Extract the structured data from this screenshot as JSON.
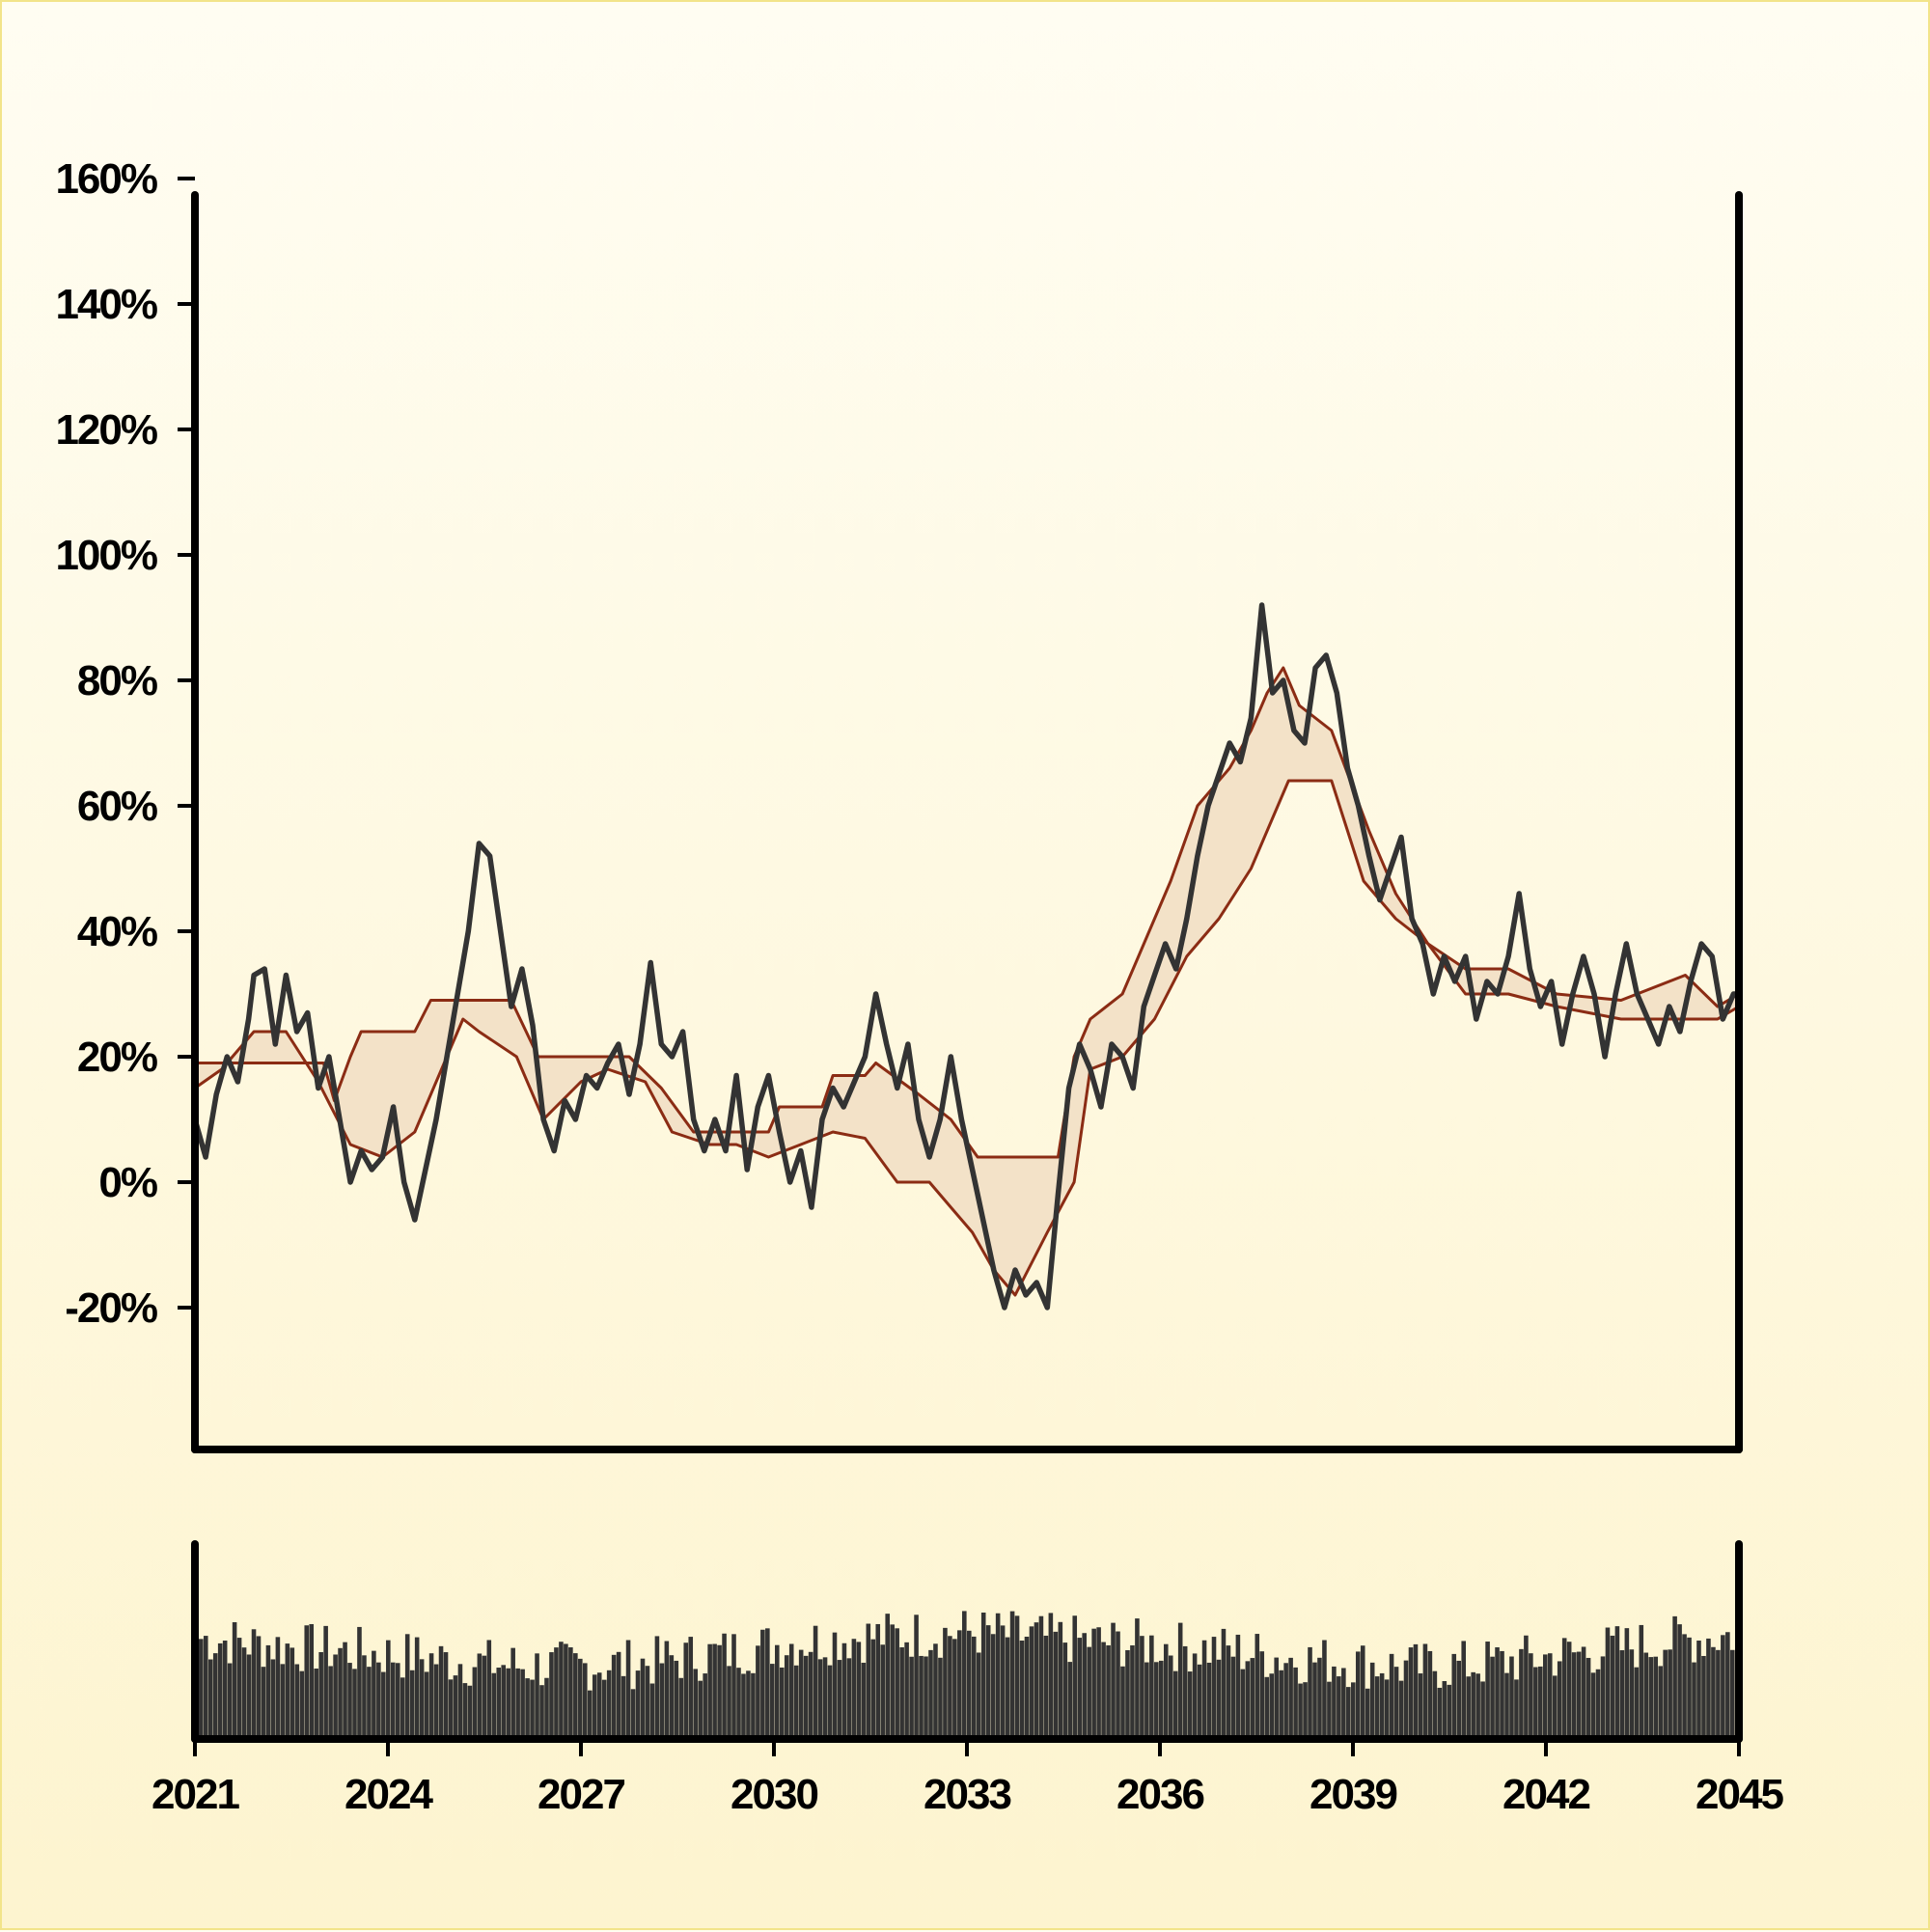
{
  "chart_data": {
    "type": "line",
    "x_axis": {
      "type": "date",
      "range": [
        "2021-01",
        "2045-01"
      ],
      "tick_labels": [
        "2021",
        "2024",
        "2027",
        "2030",
        "2033",
        "2036",
        "2039",
        "2042",
        "2045"
      ]
    },
    "y_axis": {
      "range": [
        -20,
        175
      ],
      "unit": "%",
      "tick_values": [
        -20,
        0,
        20,
        40,
        60,
        80,
        100,
        120,
        140,
        160
      ],
      "tick_labels": [
        "-20%",
        "0%",
        "20%",
        "40%",
        "60%",
        "80%",
        "100%",
        "120%",
        "140%",
        "160%"
      ]
    },
    "series": [
      {
        "role": "price",
        "style": "line",
        "color": "#333333",
        "points": [
          [
            "2021-01",
            10
          ],
          [
            "2021-03",
            4
          ],
          [
            "2021-05",
            14
          ],
          [
            "2021-07",
            20
          ],
          [
            "2021-09",
            16
          ],
          [
            "2021-11",
            26
          ],
          [
            "2021-12",
            33
          ],
          [
            "2022-02",
            34
          ],
          [
            "2022-04",
            22
          ],
          [
            "2022-06",
            33
          ],
          [
            "2022-08",
            24
          ],
          [
            "2022-10",
            27
          ],
          [
            "2022-12",
            15
          ],
          [
            "2023-02",
            20
          ],
          [
            "2023-04",
            10
          ],
          [
            "2023-06",
            0
          ],
          [
            "2023-08",
            5
          ],
          [
            "2023-10",
            2
          ],
          [
            "2023-12",
            4
          ],
          [
            "2024-02",
            12
          ],
          [
            "2024-04",
            0
          ],
          [
            "2024-06",
            -6
          ],
          [
            "2024-08",
            2
          ],
          [
            "2024-10",
            10
          ],
          [
            "2024-12",
            20
          ],
          [
            "2025-02",
            30
          ],
          [
            "2025-04",
            40
          ],
          [
            "2025-06",
            54
          ],
          [
            "2025-08",
            52
          ],
          [
            "2025-10",
            40
          ],
          [
            "2025-12",
            28
          ],
          [
            "2026-02",
            34
          ],
          [
            "2026-04",
            25
          ],
          [
            "2026-06",
            10
          ],
          [
            "2026-08",
            5
          ],
          [
            "2026-10",
            13
          ],
          [
            "2026-12",
            10
          ],
          [
            "2027-02",
            17
          ],
          [
            "2027-04",
            15
          ],
          [
            "2027-06",
            19
          ],
          [
            "2027-08",
            22
          ],
          [
            "2027-10",
            14
          ],
          [
            "2027-12",
            22
          ],
          [
            "2028-02",
            35
          ],
          [
            "2028-04",
            22
          ],
          [
            "2028-06",
            20
          ],
          [
            "2028-08",
            24
          ],
          [
            "2028-10",
            10
          ],
          [
            "2028-12",
            5
          ],
          [
            "2029-02",
            10
          ],
          [
            "2029-04",
            5
          ],
          [
            "2029-06",
            17
          ],
          [
            "2029-08",
            2
          ],
          [
            "2029-10",
            12
          ],
          [
            "2029-12",
            17
          ],
          [
            "2030-02",
            8
          ],
          [
            "2030-04",
            0
          ],
          [
            "2030-06",
            5
          ],
          [
            "2030-08",
            -4
          ],
          [
            "2030-10",
            10
          ],
          [
            "2030-12",
            15
          ],
          [
            "2031-02",
            12
          ],
          [
            "2031-04",
            16
          ],
          [
            "2031-06",
            20
          ],
          [
            "2031-08",
            30
          ],
          [
            "2031-10",
            22
          ],
          [
            "2031-12",
            15
          ],
          [
            "2032-02",
            22
          ],
          [
            "2032-04",
            10
          ],
          [
            "2032-06",
            4
          ],
          [
            "2032-08",
            10
          ],
          [
            "2032-10",
            20
          ],
          [
            "2032-12",
            10
          ],
          [
            "2033-02",
            2
          ],
          [
            "2033-04",
            -6
          ],
          [
            "2033-06",
            -14
          ],
          [
            "2033-08",
            -20
          ],
          [
            "2033-10",
            -14
          ],
          [
            "2033-12",
            -18
          ],
          [
            "2034-02",
            -16
          ],
          [
            "2034-04",
            -20
          ],
          [
            "2034-06",
            -2
          ],
          [
            "2034-08",
            15
          ],
          [
            "2034-10",
            22
          ],
          [
            "2034-12",
            18
          ],
          [
            "2035-02",
            12
          ],
          [
            "2035-04",
            22
          ],
          [
            "2035-06",
            20
          ],
          [
            "2035-08",
            15
          ],
          [
            "2035-10",
            28
          ],
          [
            "2035-12",
            33
          ],
          [
            "2036-02",
            38
          ],
          [
            "2036-04",
            34
          ],
          [
            "2036-06",
            42
          ],
          [
            "2036-08",
            52
          ],
          [
            "2036-10",
            60
          ],
          [
            "2036-12",
            65
          ],
          [
            "2037-02",
            70
          ],
          [
            "2037-04",
            67
          ],
          [
            "2037-06",
            74
          ],
          [
            "2037-08",
            92
          ],
          [
            "2037-10",
            78
          ],
          [
            "2037-12",
            80
          ],
          [
            "2038-02",
            72
          ],
          [
            "2038-04",
            70
          ],
          [
            "2038-06",
            82
          ],
          [
            "2038-08",
            84
          ],
          [
            "2038-10",
            78
          ],
          [
            "2038-12",
            66
          ],
          [
            "2039-02",
            60
          ],
          [
            "2039-04",
            52
          ],
          [
            "2039-06",
            45
          ],
          [
            "2039-08",
            50
          ],
          [
            "2039-10",
            55
          ],
          [
            "2039-12",
            42
          ],
          [
            "2040-02",
            38
          ],
          [
            "2040-04",
            30
          ],
          [
            "2040-06",
            36
          ],
          [
            "2040-08",
            32
          ],
          [
            "2040-10",
            36
          ],
          [
            "2040-12",
            26
          ],
          [
            "2041-02",
            32
          ],
          [
            "2041-04",
            30
          ],
          [
            "2041-06",
            36
          ],
          [
            "2041-08",
            46
          ],
          [
            "2041-10",
            34
          ],
          [
            "2041-12",
            28
          ],
          [
            "2042-02",
            32
          ],
          [
            "2042-04",
            22
          ],
          [
            "2042-06",
            30
          ],
          [
            "2042-08",
            36
          ],
          [
            "2042-10",
            30
          ],
          [
            "2042-12",
            20
          ],
          [
            "2043-02",
            30
          ],
          [
            "2043-04",
            38
          ],
          [
            "2043-06",
            30
          ],
          [
            "2043-08",
            26
          ],
          [
            "2043-10",
            22
          ],
          [
            "2043-12",
            28
          ],
          [
            "2044-02",
            24
          ],
          [
            "2044-04",
            32
          ],
          [
            "2044-06",
            38
          ],
          [
            "2044-08",
            36
          ],
          [
            "2044-10",
            26
          ],
          [
            "2044-12",
            30
          ],
          [
            "2045-01",
            30
          ]
        ]
      },
      {
        "role": "upper-band",
        "style": "line",
        "color": "#8b2c14",
        "points": [
          [
            "2021-01",
            19
          ],
          [
            "2022-06",
            19
          ],
          [
            "2023-01",
            19
          ],
          [
            "2023-03",
            13
          ],
          [
            "2023-06",
            20
          ],
          [
            "2023-08",
            24
          ],
          [
            "2024-06",
            24
          ],
          [
            "2024-09",
            29
          ],
          [
            "2025-12",
            29
          ],
          [
            "2026-05",
            20
          ],
          [
            "2027-05",
            20
          ],
          [
            "2027-10",
            20
          ],
          [
            "2028-04",
            15
          ],
          [
            "2028-10",
            8
          ],
          [
            "2029-06",
            8
          ],
          [
            "2029-12",
            8
          ],
          [
            "2030-02",
            12
          ],
          [
            "2030-10",
            12
          ],
          [
            "2030-12",
            17
          ],
          [
            "2031-06",
            17
          ],
          [
            "2031-08",
            19
          ],
          [
            "2032-04",
            14
          ],
          [
            "2032-10",
            10
          ],
          [
            "2033-03",
            4
          ],
          [
            "2034-06",
            4
          ],
          [
            "2034-09",
            20
          ],
          [
            "2034-12",
            26
          ],
          [
            "2035-06",
            30
          ],
          [
            "2035-09",
            36
          ],
          [
            "2036-03",
            48
          ],
          [
            "2036-08",
            60
          ],
          [
            "2037-02",
            66
          ],
          [
            "2037-06",
            72
          ],
          [
            "2037-09",
            78
          ],
          [
            "2037-12",
            82
          ],
          [
            "2038-03",
            76
          ],
          [
            "2038-09",
            72
          ],
          [
            "2039-04",
            56
          ],
          [
            "2039-09",
            46
          ],
          [
            "2040-03",
            38
          ],
          [
            "2040-10",
            34
          ],
          [
            "2041-06",
            34
          ],
          [
            "2042-03",
            30
          ],
          [
            "2043-03",
            29
          ],
          [
            "2044-03",
            33
          ],
          [
            "2044-09",
            28
          ],
          [
            "2045-01",
            30
          ]
        ]
      },
      {
        "role": "lower-band",
        "style": "line",
        "color": "#8b2c14",
        "points": [
          [
            "2021-01",
            15
          ],
          [
            "2021-06",
            18
          ],
          [
            "2021-12",
            24
          ],
          [
            "2022-06",
            24
          ],
          [
            "2022-12",
            16
          ],
          [
            "2023-06",
            6
          ],
          [
            "2023-12",
            4
          ],
          [
            "2024-06",
            8
          ],
          [
            "2024-12",
            20
          ],
          [
            "2025-03",
            26
          ],
          [
            "2025-06",
            24
          ],
          [
            "2026-01",
            20
          ],
          [
            "2026-06",
            10
          ],
          [
            "2027-01",
            16
          ],
          [
            "2027-06",
            18
          ],
          [
            "2028-01",
            16
          ],
          [
            "2028-06",
            8
          ],
          [
            "2029-01",
            6
          ],
          [
            "2029-06",
            6
          ],
          [
            "2029-12",
            4
          ],
          [
            "2030-06",
            6
          ],
          [
            "2030-12",
            8
          ],
          [
            "2031-06",
            7
          ],
          [
            "2031-12",
            0
          ],
          [
            "2032-06",
            0
          ],
          [
            "2032-10",
            -4
          ],
          [
            "2033-02",
            -8
          ],
          [
            "2033-06",
            -14
          ],
          [
            "2033-10",
            -18
          ],
          [
            "2034-04",
            -8
          ],
          [
            "2034-09",
            0
          ],
          [
            "2034-12",
            18
          ],
          [
            "2035-06",
            20
          ],
          [
            "2035-12",
            26
          ],
          [
            "2036-06",
            36
          ],
          [
            "2036-12",
            42
          ],
          [
            "2037-06",
            50
          ],
          [
            "2038-01",
            64
          ],
          [
            "2038-09",
            64
          ],
          [
            "2039-03",
            48
          ],
          [
            "2039-09",
            42
          ],
          [
            "2040-03",
            38
          ],
          [
            "2040-10",
            30
          ],
          [
            "2041-06",
            30
          ],
          [
            "2042-03",
            28
          ],
          [
            "2043-03",
            26
          ],
          [
            "2044-03",
            26
          ],
          [
            "2044-09",
            26
          ],
          [
            "2045-01",
            28
          ]
        ]
      }
    ],
    "band_fill_color": "#f3e2c8",
    "volume_panel": {
      "type": "bar",
      "color": "#333333",
      "bar_count": 320,
      "levels": [
        0.62,
        0.58,
        0.55,
        0.52,
        0.48,
        0.45,
        0.45,
        0.47,
        0.52,
        0.58,
        0.62,
        0.64,
        0.66,
        0.63,
        0.6,
        0.58,
        0.55,
        0.5,
        0.47,
        0.44,
        0.46,
        0.5,
        0.55,
        0.6,
        0.64
      ]
    },
    "grid": false,
    "legend": "none"
  }
}
